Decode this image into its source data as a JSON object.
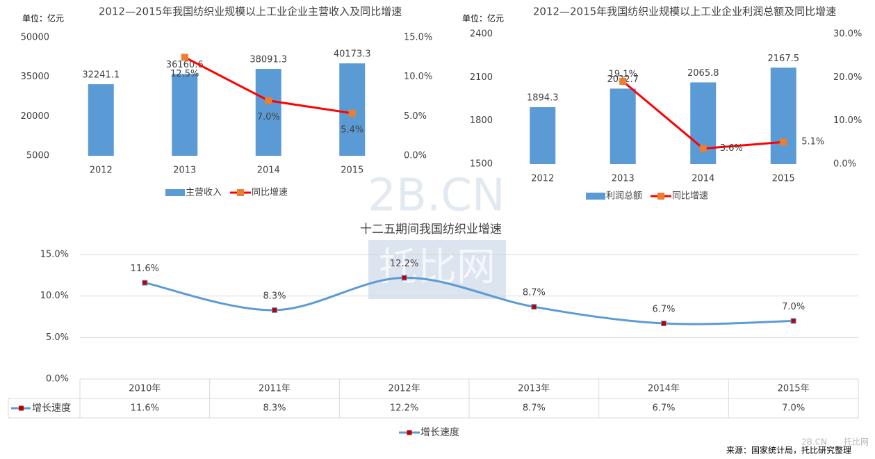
{
  "chart_data": [
    {
      "type": "bar",
      "title": "2012—2015年我国纺织业规模以上工业企业主营收入及同比增速",
      "y_label": "单位：亿元",
      "categories": [
        "2012",
        "2013",
        "2014",
        "2015"
      ],
      "series": [
        {
          "name": "主营收入",
          "type": "bar",
          "color": "#5b9bd5",
          "values": [
            32241.1,
            36160.6,
            38091.3,
            40173.3
          ]
        },
        {
          "name": "同比增速",
          "type": "line",
          "axis": "y2",
          "color": "#ff0000",
          "marker_color": "#ed7d31",
          "values": [
            null,
            12.5,
            7.0,
            5.4
          ],
          "value_labels": [
            null,
            "12.5%",
            "7.0%",
            "5.4%"
          ]
        }
      ],
      "ylim": [
        5000,
        50000
      ],
      "yticks": [
        5000,
        20000,
        35000,
        50000
      ],
      "y2lim": [
        0,
        15
      ],
      "y2ticks": [
        {
          "value": 0,
          "label": "0.0%"
        },
        {
          "value": 5,
          "label": "5.0%"
        },
        {
          "value": 10,
          "label": "10.0%"
        },
        {
          "value": 15,
          "label": "15.0%"
        }
      ]
    },
    {
      "type": "bar",
      "title": "2012—2015年我国纺织业规模以上工业企业利润总额及同比增速",
      "y_label": "单位：亿元",
      "categories": [
        "2012",
        "2013",
        "2014",
        "2015"
      ],
      "series": [
        {
          "name": "利润总额",
          "type": "bar",
          "color": "#5b9bd5",
          "values": [
            1894.3,
            2022.7,
            2065.8,
            2167.5
          ]
        },
        {
          "name": "同比增速",
          "type": "line",
          "axis": "y2",
          "color": "#ff0000",
          "marker_color": "#ed7d31",
          "values": [
            null,
            19.1,
            3.6,
            5.1
          ],
          "value_labels": [
            null,
            "19.1%",
            "3.6%",
            "5.1%"
          ]
        }
      ],
      "ylim": [
        1500,
        2400
      ],
      "yticks": [
        1500,
        1800,
        2100,
        2400
      ],
      "y2lim": [
        0,
        30
      ],
      "y2ticks": [
        {
          "value": 0,
          "label": "0.0%"
        },
        {
          "value": 10,
          "label": "10.0%"
        },
        {
          "value": 20,
          "label": "20.0%"
        },
        {
          "value": 30,
          "label": "30.0%"
        }
      ]
    },
    {
      "type": "line",
      "title": "十二五期间我国纺织业增速",
      "categories": [
        "2010年",
        "2011年",
        "2012年",
        "2013年",
        "2014年",
        "2015年"
      ],
      "series": [
        {
          "name": "增长速度",
          "color": "#5b9bd5",
          "marker_color": "#c00000",
          "values": [
            11.6,
            8.3,
            12.2,
            8.7,
            6.7,
            7.0
          ],
          "value_labels": [
            "11.6%",
            "8.3%",
            "12.2%",
            "8.7%",
            "6.7%",
            "7.0%"
          ]
        }
      ],
      "ylim": [
        0,
        15
      ],
      "yticks": [
        {
          "value": 0,
          "label": "0.0%"
        },
        {
          "value": 5,
          "label": "5.0%"
        },
        {
          "value": 10,
          "label": "10.0%"
        },
        {
          "value": 15,
          "label": "15.0%"
        }
      ],
      "grid": true,
      "data_table": true
    }
  ],
  "source": "来源：国家统计局，托比研究整理",
  "watermark": [
    "2B.CN",
    "托比网"
  ]
}
